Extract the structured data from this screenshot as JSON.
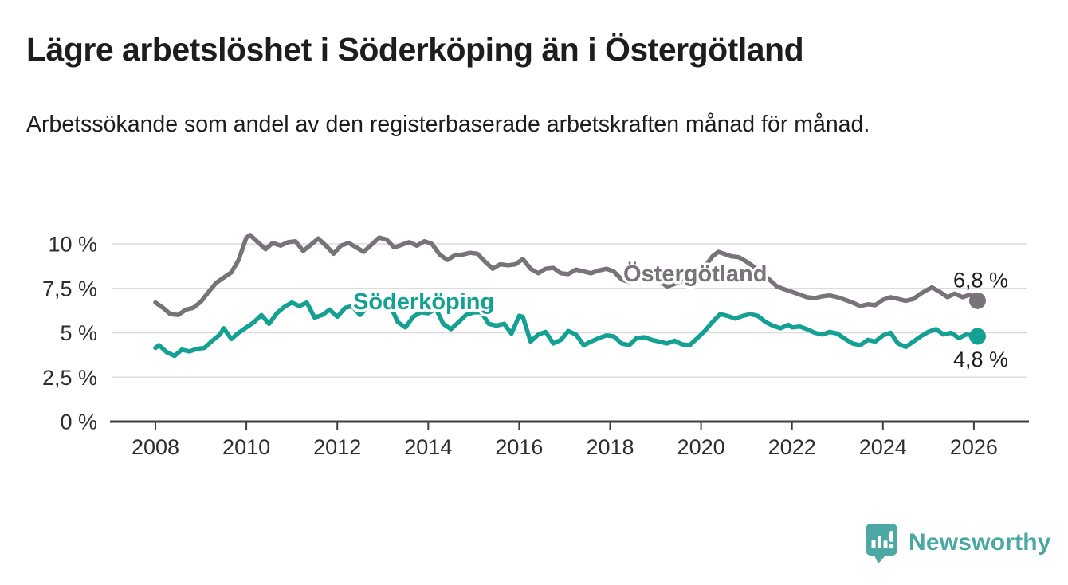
{
  "header": {
    "title": "Lägre arbetslöshet i Söderköping än i Östergötland",
    "subtitle": "Arbetssökande som andel av den registerbaserade arbetskraften månad för månad."
  },
  "chart_data": {
    "type": "line",
    "title": "Lägre arbetslöshet i Söderköping än i Östergötland",
    "xlabel": "",
    "ylabel": "",
    "grid": true,
    "ylim": [
      0,
      11
    ],
    "xlim": [
      2007.5,
      2027.2
    ],
    "y_ticks": [
      {
        "label": "10 %",
        "value": 10
      },
      {
        "label": "7,5 %",
        "value": 7.5
      },
      {
        "label": "5 %",
        "value": 5
      },
      {
        "label": "2,5 %",
        "value": 2.5
      },
      {
        "label": "0 %",
        "value": 0
      }
    ],
    "x_ticks": [
      {
        "label": "2008",
        "value": 2008
      },
      {
        "label": "2010",
        "value": 2010
      },
      {
        "label": "2012",
        "value": 2012
      },
      {
        "label": "2014",
        "value": 2014
      },
      {
        "label": "2016",
        "value": 2016
      },
      {
        "label": "2018",
        "value": 2018
      },
      {
        "label": "2020",
        "value": 2020
      },
      {
        "label": "2022",
        "value": 2022
      },
      {
        "label": "2024",
        "value": 2024
      },
      {
        "label": "2026",
        "value": 2026
      }
    ],
    "series": [
      {
        "name": "Östergötland",
        "color": "#787379",
        "end_label": "6,8 %",
        "end_value": 6.8,
        "points": [
          [
            2008.0,
            6.7
          ],
          [
            2008.17,
            6.4
          ],
          [
            2008.33,
            6.05
          ],
          [
            2008.5,
            6.0
          ],
          [
            2008.67,
            6.3
          ],
          [
            2008.83,
            6.4
          ],
          [
            2009.0,
            6.75
          ],
          [
            2009.17,
            7.3
          ],
          [
            2009.33,
            7.8
          ],
          [
            2009.5,
            8.1
          ],
          [
            2009.67,
            8.4
          ],
          [
            2009.83,
            9.1
          ],
          [
            2010.0,
            10.35
          ],
          [
            2010.08,
            10.5
          ],
          [
            2010.25,
            10.1
          ],
          [
            2010.42,
            9.7
          ],
          [
            2010.58,
            10.05
          ],
          [
            2010.75,
            9.9
          ],
          [
            2010.92,
            10.1
          ],
          [
            2011.08,
            10.15
          ],
          [
            2011.25,
            9.6
          ],
          [
            2011.42,
            9.95
          ],
          [
            2011.58,
            10.3
          ],
          [
            2011.75,
            9.9
          ],
          [
            2011.92,
            9.45
          ],
          [
            2012.08,
            9.9
          ],
          [
            2012.25,
            10.05
          ],
          [
            2012.42,
            9.8
          ],
          [
            2012.58,
            9.55
          ],
          [
            2012.75,
            9.95
          ],
          [
            2012.92,
            10.35
          ],
          [
            2013.08,
            10.25
          ],
          [
            2013.25,
            9.8
          ],
          [
            2013.42,
            9.95
          ],
          [
            2013.58,
            10.1
          ],
          [
            2013.75,
            9.9
          ],
          [
            2013.92,
            10.15
          ],
          [
            2014.08,
            10.0
          ],
          [
            2014.25,
            9.4
          ],
          [
            2014.42,
            9.1
          ],
          [
            2014.58,
            9.35
          ],
          [
            2014.75,
            9.4
          ],
          [
            2014.92,
            9.5
          ],
          [
            2015.08,
            9.45
          ],
          [
            2015.25,
            9.0
          ],
          [
            2015.42,
            8.6
          ],
          [
            2015.58,
            8.85
          ],
          [
            2015.75,
            8.8
          ],
          [
            2015.92,
            8.85
          ],
          [
            2016.08,
            9.15
          ],
          [
            2016.25,
            8.6
          ],
          [
            2016.42,
            8.35
          ],
          [
            2016.58,
            8.6
          ],
          [
            2016.75,
            8.65
          ],
          [
            2016.92,
            8.35
          ],
          [
            2017.08,
            8.3
          ],
          [
            2017.25,
            8.55
          ],
          [
            2017.42,
            8.45
          ],
          [
            2017.58,
            8.35
          ],
          [
            2017.75,
            8.5
          ],
          [
            2017.92,
            8.6
          ],
          [
            2018.08,
            8.45
          ],
          [
            2018.25,
            8.0
          ],
          [
            2018.42,
            7.85
          ],
          [
            2018.58,
            8.05
          ],
          [
            2018.75,
            8.0
          ],
          [
            2018.92,
            8.05
          ],
          [
            2019.08,
            7.95
          ],
          [
            2019.25,
            7.6
          ],
          [
            2019.42,
            7.75
          ],
          [
            2019.58,
            7.9
          ],
          [
            2019.75,
            8.0
          ],
          [
            2019.92,
            8.3
          ],
          [
            2020.08,
            8.7
          ],
          [
            2020.25,
            9.3
          ],
          [
            2020.38,
            9.55
          ],
          [
            2020.5,
            9.45
          ],
          [
            2020.67,
            9.3
          ],
          [
            2020.83,
            9.25
          ],
          [
            2021.0,
            9.0
          ],
          [
            2021.17,
            8.7
          ],
          [
            2021.33,
            8.35
          ],
          [
            2021.5,
            8.0
          ],
          [
            2021.67,
            7.6
          ],
          [
            2021.83,
            7.45
          ],
          [
            2022.0,
            7.3
          ],
          [
            2022.17,
            7.15
          ],
          [
            2022.33,
            7.0
          ],
          [
            2022.5,
            6.95
          ],
          [
            2022.67,
            7.05
          ],
          [
            2022.83,
            7.1
          ],
          [
            2023.0,
            7.0
          ],
          [
            2023.17,
            6.85
          ],
          [
            2023.33,
            6.7
          ],
          [
            2023.5,
            6.5
          ],
          [
            2023.67,
            6.6
          ],
          [
            2023.83,
            6.55
          ],
          [
            2024.0,
            6.85
          ],
          [
            2024.17,
            7.0
          ],
          [
            2024.33,
            6.9
          ],
          [
            2024.5,
            6.8
          ],
          [
            2024.67,
            6.9
          ],
          [
            2024.83,
            7.2
          ],
          [
            2025.0,
            7.45
          ],
          [
            2025.08,
            7.55
          ],
          [
            2025.25,
            7.3
          ],
          [
            2025.42,
            7.0
          ],
          [
            2025.58,
            7.2
          ],
          [
            2025.75,
            7.0
          ],
          [
            2025.92,
            7.15
          ],
          [
            2026.08,
            6.8
          ]
        ]
      },
      {
        "name": "Söderköping",
        "color": "#14A194",
        "end_label": "4,8 %",
        "end_value": 4.8,
        "points": [
          [
            2008.0,
            4.15
          ],
          [
            2008.08,
            4.3
          ],
          [
            2008.25,
            3.9
          ],
          [
            2008.42,
            3.7
          ],
          [
            2008.58,
            4.05
          ],
          [
            2008.75,
            3.95
          ],
          [
            2008.92,
            4.1
          ],
          [
            2009.08,
            4.15
          ],
          [
            2009.25,
            4.55
          ],
          [
            2009.42,
            4.9
          ],
          [
            2009.5,
            5.25
          ],
          [
            2009.67,
            4.65
          ],
          [
            2009.83,
            5.0
          ],
          [
            2010.0,
            5.3
          ],
          [
            2010.17,
            5.6
          ],
          [
            2010.33,
            6.0
          ],
          [
            2010.5,
            5.5
          ],
          [
            2010.67,
            6.1
          ],
          [
            2010.83,
            6.45
          ],
          [
            2011.0,
            6.7
          ],
          [
            2011.17,
            6.5
          ],
          [
            2011.33,
            6.7
          ],
          [
            2011.5,
            5.85
          ],
          [
            2011.67,
            6.0
          ],
          [
            2011.83,
            6.3
          ],
          [
            2012.0,
            5.9
          ],
          [
            2012.17,
            6.4
          ],
          [
            2012.33,
            6.5
          ],
          [
            2012.5,
            6.0
          ],
          [
            2012.67,
            6.45
          ],
          [
            2012.83,
            6.5
          ],
          [
            2013.0,
            6.8
          ],
          [
            2013.17,
            6.5
          ],
          [
            2013.33,
            5.6
          ],
          [
            2013.5,
            5.3
          ],
          [
            2013.67,
            5.9
          ],
          [
            2013.83,
            6.15
          ],
          [
            2014.0,
            6.1
          ],
          [
            2014.17,
            6.35
          ],
          [
            2014.33,
            5.5
          ],
          [
            2014.5,
            5.2
          ],
          [
            2014.67,
            5.6
          ],
          [
            2014.83,
            6.0
          ],
          [
            2015.0,
            6.15
          ],
          [
            2015.17,
            6.15
          ],
          [
            2015.33,
            5.5
          ],
          [
            2015.5,
            5.4
          ],
          [
            2015.67,
            5.5
          ],
          [
            2015.83,
            4.95
          ],
          [
            2016.0,
            5.95
          ],
          [
            2016.08,
            5.9
          ],
          [
            2016.25,
            4.5
          ],
          [
            2016.42,
            4.9
          ],
          [
            2016.58,
            5.05
          ],
          [
            2016.75,
            4.4
          ],
          [
            2016.92,
            4.6
          ],
          [
            2017.08,
            5.1
          ],
          [
            2017.25,
            4.9
          ],
          [
            2017.42,
            4.3
          ],
          [
            2017.58,
            4.5
          ],
          [
            2017.75,
            4.7
          ],
          [
            2017.92,
            4.85
          ],
          [
            2018.08,
            4.8
          ],
          [
            2018.25,
            4.4
          ],
          [
            2018.42,
            4.3
          ],
          [
            2018.58,
            4.7
          ],
          [
            2018.75,
            4.75
          ],
          [
            2018.92,
            4.6
          ],
          [
            2019.08,
            4.5
          ],
          [
            2019.25,
            4.4
          ],
          [
            2019.42,
            4.55
          ],
          [
            2019.58,
            4.35
          ],
          [
            2019.75,
            4.3
          ],
          [
            2019.92,
            4.7
          ],
          [
            2020.08,
            5.1
          ],
          [
            2020.25,
            5.6
          ],
          [
            2020.42,
            6.05
          ],
          [
            2020.58,
            5.95
          ],
          [
            2020.75,
            5.8
          ],
          [
            2020.92,
            5.95
          ],
          [
            2021.08,
            6.05
          ],
          [
            2021.25,
            5.95
          ],
          [
            2021.42,
            5.6
          ],
          [
            2021.58,
            5.4
          ],
          [
            2021.75,
            5.25
          ],
          [
            2021.92,
            5.45
          ],
          [
            2022.0,
            5.3
          ],
          [
            2022.17,
            5.35
          ],
          [
            2022.33,
            5.2
          ],
          [
            2022.5,
            5.0
          ],
          [
            2022.67,
            4.9
          ],
          [
            2022.83,
            5.05
          ],
          [
            2023.0,
            4.95
          ],
          [
            2023.17,
            4.65
          ],
          [
            2023.33,
            4.4
          ],
          [
            2023.5,
            4.3
          ],
          [
            2023.67,
            4.6
          ],
          [
            2023.83,
            4.5
          ],
          [
            2024.0,
            4.85
          ],
          [
            2024.17,
            5.0
          ],
          [
            2024.33,
            4.4
          ],
          [
            2024.5,
            4.2
          ],
          [
            2024.67,
            4.5
          ],
          [
            2024.83,
            4.8
          ],
          [
            2025.0,
            5.05
          ],
          [
            2025.17,
            5.2
          ],
          [
            2025.33,
            4.9
          ],
          [
            2025.5,
            5.0
          ],
          [
            2025.67,
            4.7
          ],
          [
            2025.83,
            4.9
          ],
          [
            2026.0,
            4.85
          ],
          [
            2026.08,
            4.8
          ]
        ]
      }
    ],
    "annotations": {
      "soderkoping_label": "Söderköping",
      "ostergotland_label": "Östergötland"
    }
  },
  "footer": {
    "brand": "Newsworthy",
    "brand_color": "#4BA8A3",
    "logo_icon": "speech-bubble-bar-chart-exclamation"
  }
}
